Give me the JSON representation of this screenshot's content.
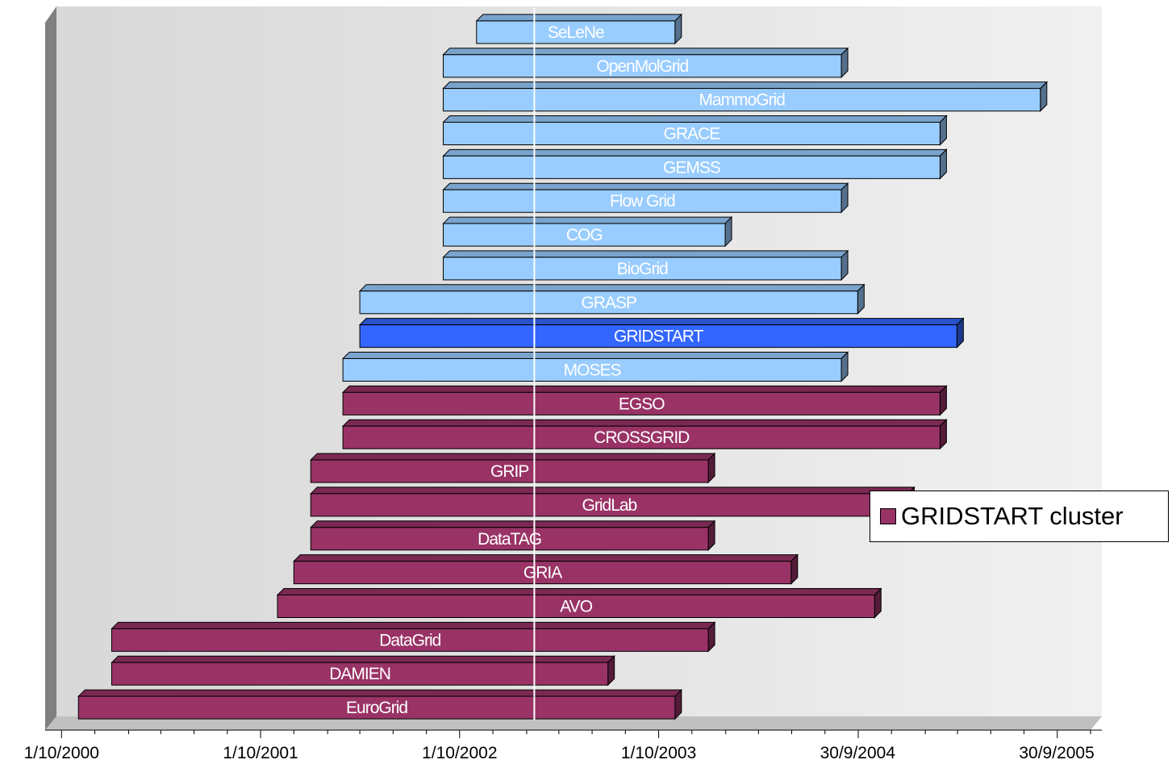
{
  "chart_data": {
    "type": "gantt-bar",
    "x_axis": {
      "type": "date",
      "range": [
        "2000-09-01",
        "2005-12-01"
      ],
      "tick_labels": [
        "1/10/2000",
        "1/10/2001",
        "1/10/2002",
        "1/10/2003",
        "30/9/2004",
        "30/9/2005"
      ],
      "tick_dates": [
        "2000-10-01",
        "2001-10-01",
        "2002-10-01",
        "2003-10-01",
        "2004-09-30",
        "2005-09-30"
      ]
    },
    "reference_line_date": "2003-02-15",
    "colors": {
      "cluster": "#993366",
      "project": "#99ccff",
      "gridstart": "#3366ff",
      "plot_background": "#e4e4e4",
      "reference_line": "#ffffff"
    },
    "series": [
      {
        "name": "GRIDSTART cluster",
        "color": "#993366"
      }
    ],
    "bars": [
      {
        "label": "SeLeNe",
        "start": "2002-11-01",
        "end": "2003-10-31",
        "group": "project"
      },
      {
        "label": "OpenMolGrid",
        "start": "2002-09-01",
        "end": "2004-08-31",
        "group": "project"
      },
      {
        "label": "MammoGrid",
        "start": "2002-09-01",
        "end": "2005-08-31",
        "group": "project"
      },
      {
        "label": "GRACE",
        "start": "2002-09-01",
        "end": "2005-02-28",
        "group": "project"
      },
      {
        "label": "GEMSS",
        "start": "2002-09-01",
        "end": "2005-02-28",
        "group": "project"
      },
      {
        "label": "Flow Grid",
        "start": "2002-09-01",
        "end": "2004-08-31",
        "group": "project"
      },
      {
        "label": "COG",
        "start": "2002-09-01",
        "end": "2004-01-31",
        "group": "project"
      },
      {
        "label": "BioGrid",
        "start": "2002-09-01",
        "end": "2004-08-31",
        "group": "project"
      },
      {
        "label": "GRASP",
        "start": "2002-04-01",
        "end": "2004-09-30",
        "group": "project"
      },
      {
        "label": "GRIDSTART",
        "start": "2002-04-01",
        "end": "2005-03-31",
        "group": "gridstart"
      },
      {
        "label": "MOSES",
        "start": "2002-03-01",
        "end": "2004-08-31",
        "group": "project"
      },
      {
        "label": "EGSO",
        "start": "2002-03-01",
        "end": "2005-02-28",
        "group": "cluster"
      },
      {
        "label": "CROSSGRID",
        "start": "2002-03-01",
        "end": "2005-02-28",
        "group": "cluster"
      },
      {
        "label": "GRIP",
        "start": "2002-01-01",
        "end": "2003-12-31",
        "group": "cluster"
      },
      {
        "label": "GridLab",
        "start": "2002-01-01",
        "end": "2004-12-31",
        "group": "cluster"
      },
      {
        "label": "DataTAG",
        "start": "2002-01-01",
        "end": "2003-12-31",
        "group": "cluster"
      },
      {
        "label": "GRIA",
        "start": "2001-12-01",
        "end": "2004-05-31",
        "group": "cluster"
      },
      {
        "label": "AVO",
        "start": "2001-11-01",
        "end": "2004-10-31",
        "group": "cluster"
      },
      {
        "label": "DataGrid",
        "start": "2001-01-01",
        "end": "2003-12-31",
        "group": "cluster"
      },
      {
        "label": "DAMIEN",
        "start": "2001-01-01",
        "end": "2003-06-30",
        "group": "cluster"
      },
      {
        "label": "EuroGrid",
        "start": "2000-11-01",
        "end": "2003-10-31",
        "group": "cluster"
      }
    ],
    "legend": {
      "position": "right",
      "label": "GRIDSTART cluster"
    },
    "grid": false
  }
}
